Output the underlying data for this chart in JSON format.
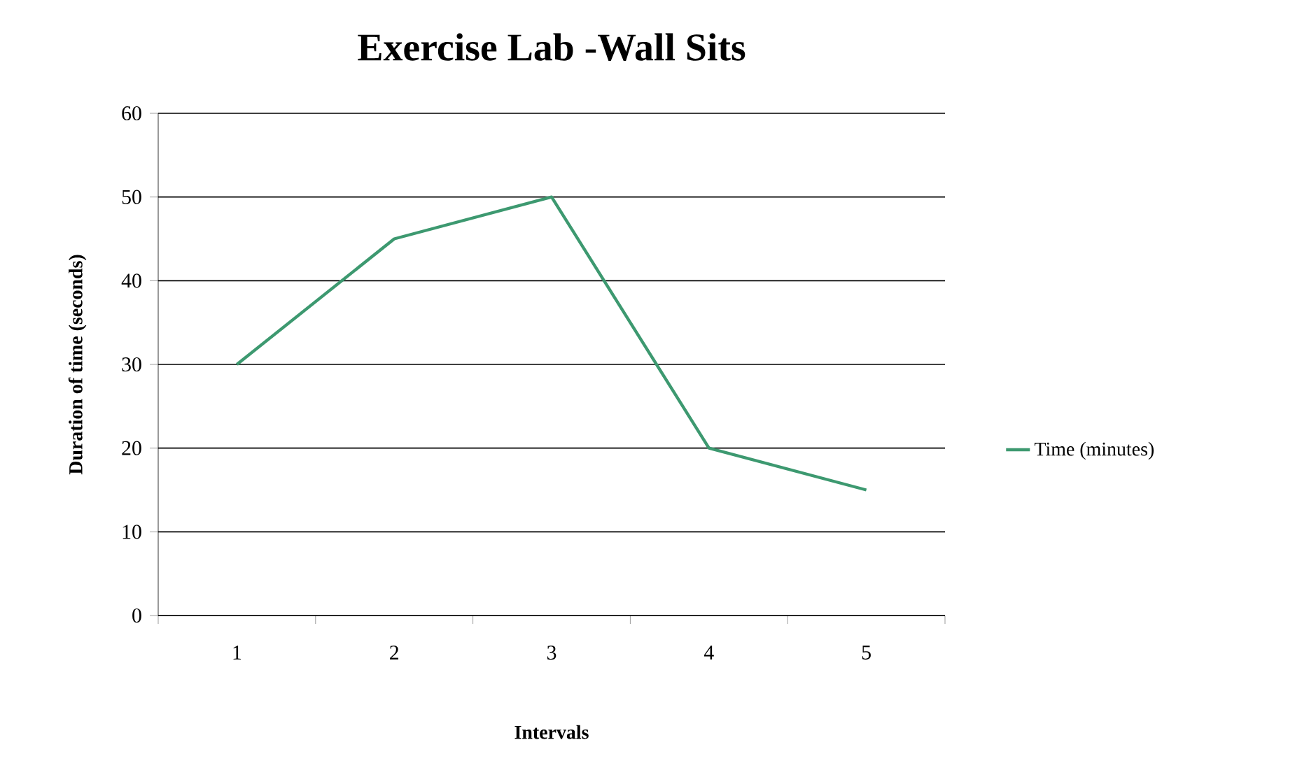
{
  "chart_data": {
    "type": "line",
    "title": "Exercise Lab -Wall Sits",
    "xlabel": "Intervals",
    "ylabel": "Duration of time (seconds)",
    "categories": [
      "1",
      "2",
      "3",
      "4",
      "5"
    ],
    "series": [
      {
        "name": "Time (minutes)",
        "color": "#3d9970",
        "values": [
          30,
          45,
          50,
          20,
          15
        ]
      }
    ],
    "ylim": [
      0,
      60
    ],
    "yticks": [
      0,
      10,
      20,
      30,
      40,
      50,
      60
    ],
    "grid": "y",
    "legend": "right"
  }
}
